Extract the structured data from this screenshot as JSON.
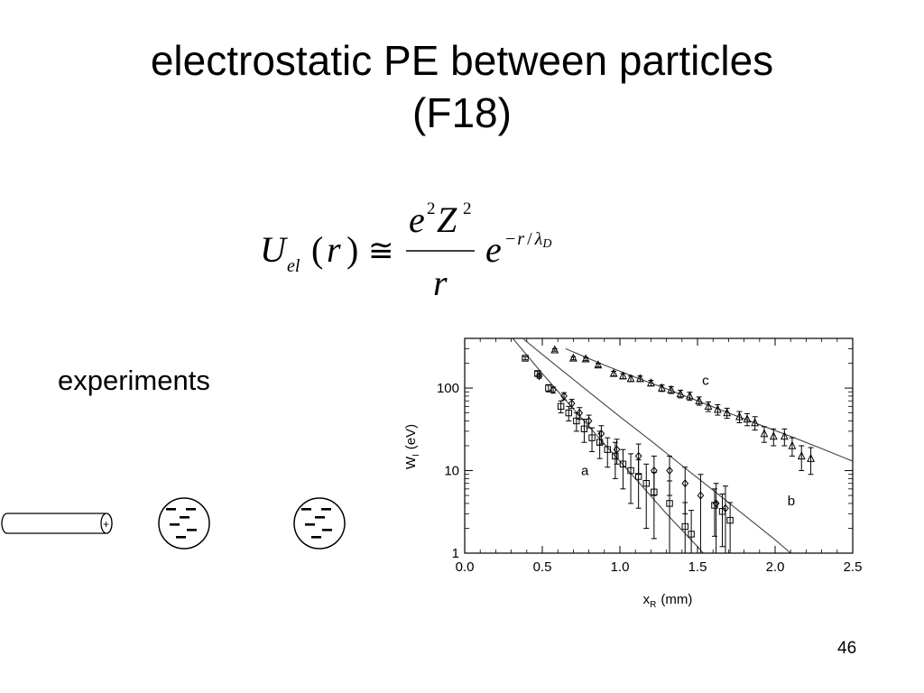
{
  "slide": {
    "title_line1": "electrostatic PE between particles",
    "title_line2": "(F18)",
    "experiments_label": "experiments",
    "page_number": "46"
  },
  "formula": {
    "U": "U",
    "el": "el",
    "open": "(",
    "r": "r",
    "close": ")",
    "relation": "≅",
    "num_e": "e",
    "num_e_sup": "2",
    "num_Z": "Z",
    "num_Z_sup": "2",
    "denominator": "r",
    "exp_base": "e",
    "exp_minus": "−",
    "exp_r": "r",
    "exp_slash": "/",
    "exp_lambda": "λ",
    "exp_D": "D"
  },
  "particles": {
    "rod_charge": "+",
    "sphere_charge": "−"
  },
  "chart_data": {
    "type": "scatter",
    "xlabel_main": "x",
    "xlabel_sub": "R",
    "xlabel_unit": "(mm)",
    "ylabel_main": "W",
    "ylabel_sub": "I",
    "ylabel_unit": "(eV)",
    "xlim": [
      0.0,
      2.5
    ],
    "ylim": [
      1,
      400
    ],
    "yscale": "log",
    "x_ticks": [
      0.0,
      0.5,
      1.0,
      1.5,
      2.0,
      2.5
    ],
    "x_tick_labels": [
      "0.0",
      "0.5",
      "1.0",
      "1.5",
      "2.0",
      "2.5"
    ],
    "y_ticks": [
      1,
      10,
      100
    ],
    "y_tick_labels": [
      "1",
      "10",
      "100"
    ],
    "series": [
      {
        "name": "a",
        "marker": "square",
        "x": [
          0.39,
          0.47,
          0.54,
          0.62,
          0.67,
          0.72,
          0.77,
          0.82,
          0.87,
          0.92,
          0.97,
          1.02,
          1.07,
          1.12,
          1.17,
          1.22,
          1.32,
          1.42,
          1.46,
          1.61,
          1.66,
          1.71
        ],
        "y": [
          230,
          150,
          100,
          60,
          50,
          40,
          32,
          25,
          22,
          18,
          15,
          12,
          10,
          8.5,
          7,
          5.5,
          4,
          2.1,
          1.7,
          3.8,
          3.2,
          2.5
        ],
        "err": [
          10,
          10,
          10,
          10,
          10,
          10,
          10,
          8,
          8,
          7,
          7,
          6,
          6,
          5,
          5,
          4,
          3.5,
          2,
          1.6,
          2.2,
          2,
          1.6
        ],
        "fit_label": "a",
        "label_x": 0.75,
        "label_y": 8.8,
        "fit": {
          "x": [
            0.31,
            0.5,
            0.7,
            0.9,
            1.1,
            1.3,
            1.5,
            1.7
          ],
          "y": [
            400,
            150,
            56,
            21,
            8,
            3,
            1.2,
            0.45
          ]
        }
      },
      {
        "name": "b",
        "marker": "diamond",
        "x": [
          0.48,
          0.57,
          0.64,
          0.69,
          0.74,
          0.8,
          0.88,
          0.98,
          1.12,
          1.22,
          1.32,
          1.42,
          1.52,
          1.62,
          1.68
        ],
        "y": [
          140,
          95,
          80,
          65,
          50,
          40,
          28,
          18,
          15,
          10,
          10,
          7,
          5,
          4,
          3.5
        ],
        "err": [
          8,
          8,
          8,
          8,
          8,
          7,
          7,
          6,
          6,
          5,
          5,
          4,
          4,
          3,
          3
        ],
        "label_x": 2.08,
        "label_y": 3.8,
        "fit": {
          "x": [
            0.38,
            0.6,
            0.8,
            1.0,
            1.2,
            1.4,
            1.6,
            1.8,
            2.0,
            2.1
          ],
          "y": [
            390,
            180,
            90,
            45,
            23,
            11.5,
            5.8,
            2.9,
            1.45,
            1.0
          ]
        }
      },
      {
        "name": "c",
        "marker": "triangle",
        "x": [
          0.58,
          0.7,
          0.78,
          0.86,
          0.96,
          1.02,
          1.07,
          1.13,
          1.2,
          1.27,
          1.33,
          1.39,
          1.45,
          1.51,
          1.57,
          1.63,
          1.69,
          1.77,
          1.82,
          1.87,
          1.93,
          1.99,
          2.06,
          2.11,
          2.17,
          2.23
        ],
        "y": [
          290,
          230,
          225,
          190,
          150,
          140,
          130,
          130,
          115,
          100,
          95,
          85,
          80,
          70,
          60,
          55,
          50,
          45,
          42,
          38,
          28,
          26,
          26,
          20,
          15,
          14
        ],
        "err": [
          10,
          10,
          10,
          10,
          10,
          10,
          10,
          10,
          9,
          9,
          9,
          9,
          9,
          8,
          8,
          8,
          7,
          7,
          7,
          7,
          6,
          6,
          6,
          5,
          5,
          5
        ],
        "label_x": 1.53,
        "label_y": 110,
        "fit": {
          "x": [
            0.65,
            0.9,
            1.1,
            1.3,
            1.5,
            1.7,
            1.9,
            2.1,
            2.3,
            2.5
          ],
          "y": [
            300,
            190,
            135,
            98,
            70,
            50,
            36,
            26,
            18.5,
            13
          ]
        }
      }
    ]
  }
}
